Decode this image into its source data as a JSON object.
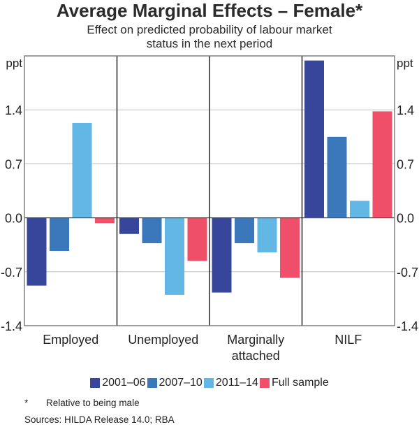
{
  "chart_data": {
    "type": "bar",
    "title": "Average Marginal Effects – Female*",
    "subtitle_lines": [
      "Effect on predicted probability of labour market",
      "status in the next period"
    ],
    "ylabel_left": "ppt",
    "ylabel_right": "ppt",
    "ylim": [
      -1.4,
      2.1
    ],
    "yticks": [
      -1.4,
      -0.7,
      0.0,
      0.7,
      1.4
    ],
    "ytick_labels": [
      "-1.4",
      "-0.7",
      "0.0",
      "0.7",
      "1.4"
    ],
    "grid": true,
    "categories": [
      "Employed",
      "Unemployed",
      "Marginally attached",
      "NILF"
    ],
    "category_label_lines": [
      [
        "Employed"
      ],
      [
        "Unemployed"
      ],
      [
        "Marginally",
        "attached"
      ],
      [
        "NILF"
      ]
    ],
    "series": [
      {
        "name": "2001–06",
        "color": "#37469a",
        "values": [
          -0.88,
          -0.21,
          -0.97,
          2.04
        ]
      },
      {
        "name": "2007–10",
        "color": "#3a78bb",
        "values": [
          -0.43,
          -0.33,
          -0.33,
          1.05
        ]
      },
      {
        "name": "2011–14",
        "color": "#62b7e5",
        "values": [
          1.23,
          -1.0,
          -0.45,
          0.22
        ]
      },
      {
        "name": "Full sample",
        "color": "#ef4f68",
        "values": [
          -0.07,
          -0.56,
          -0.78,
          1.38
        ]
      }
    ],
    "legend_position": "bottom"
  },
  "footnote": {
    "marker": "*",
    "text": "Relative to being male"
  },
  "sources": "Sources:  HILDA Release 14.0; RBA"
}
